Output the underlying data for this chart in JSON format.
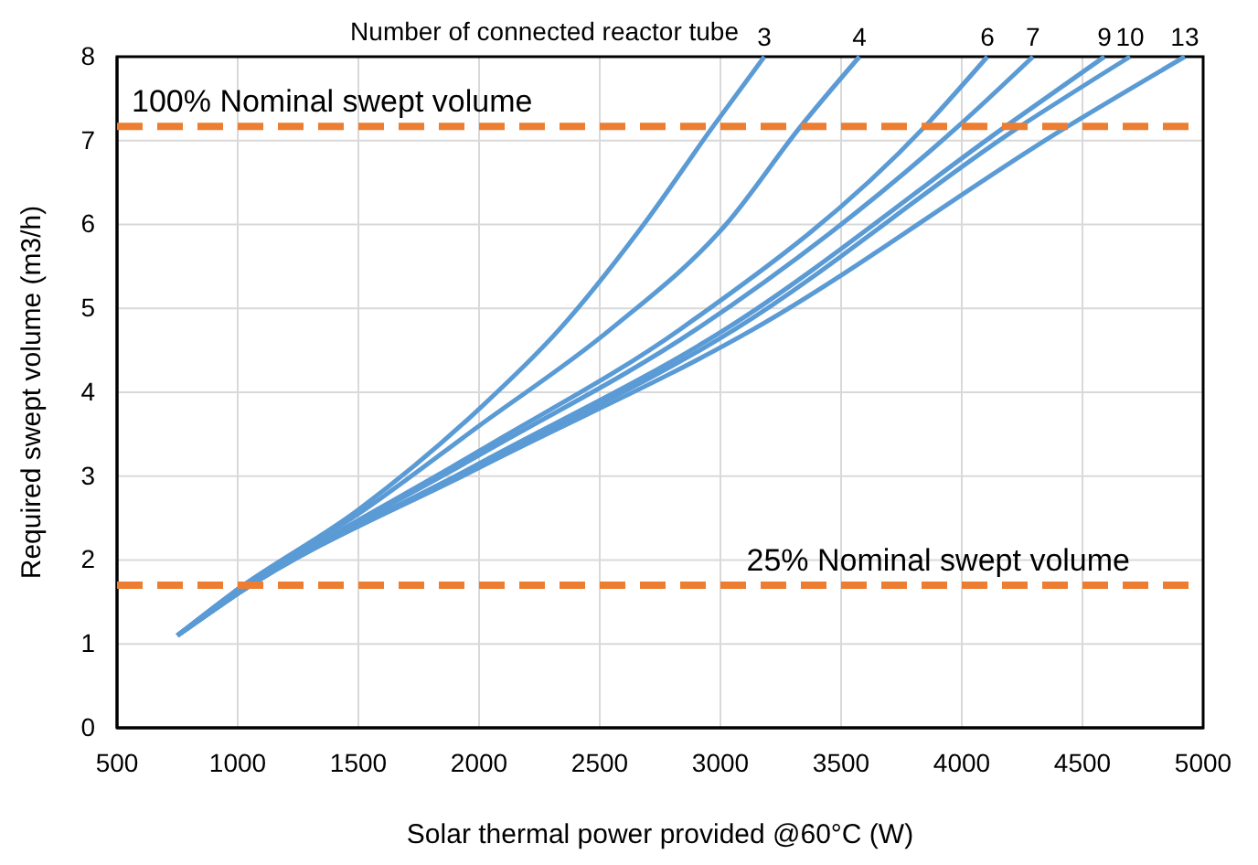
{
  "chart_data": {
    "type": "line",
    "xlabel": "Solar thermal power provided @60°C (W)",
    "ylabel": "Required swept volume (m3/h)",
    "xlim": [
      500,
      5000
    ],
    "xticks": [
      500,
      1000,
      1500,
      2000,
      2500,
      3000,
      3500,
      4000,
      4500,
      5000
    ],
    "ylim": [
      0,
      8
    ],
    "yticks": [
      0,
      1,
      2,
      3,
      4,
      5,
      6,
      7,
      8
    ],
    "grid": true,
    "legend": false,
    "marker": "none",
    "line_style": "solid",
    "series": [
      {
        "name": "3",
        "color": "#5b9bd5",
        "x": [
          750,
          1000,
          1500,
          2000,
          2333,
          2682,
          2970,
          3182
        ],
        "values": [
          1.1,
          1.65,
          2.6,
          3.8,
          4.75,
          6.0,
          7.17,
          8.0
        ]
      },
      {
        "name": "4",
        "color": "#5b9bd5",
        "x": [
          750,
          1000,
          1500,
          2000,
          2545,
          3023,
          3333,
          3576
        ],
        "values": [
          1.1,
          1.65,
          2.55,
          3.6,
          4.75,
          6.0,
          7.17,
          8.0
        ]
      },
      {
        "name": "6",
        "color": "#5b9bd5",
        "x": [
          750,
          1000,
          2000,
          2833,
          3848,
          4106
        ],
        "values": [
          1.1,
          1.6,
          3.3,
          4.75,
          7.17,
          8.0
        ]
      },
      {
        "name": "7",
        "color": "#5b9bd5",
        "x": [
          750,
          1000,
          2000,
          2900,
          3985,
          4295
        ],
        "values": [
          1.1,
          1.6,
          3.25,
          4.75,
          7.17,
          8.0
        ]
      },
      {
        "name": "9",
        "color": "#5b9bd5",
        "x": [
          750,
          1000,
          2000,
          3020,
          4182,
          4591
        ],
        "values": [
          1.1,
          1.6,
          3.15,
          4.75,
          7.17,
          8.0
        ]
      },
      {
        "name": "10",
        "color": "#5b9bd5",
        "x": [
          750,
          1000,
          2000,
          3060,
          4242,
          4697
        ],
        "values": [
          1.1,
          1.6,
          3.12,
          4.75,
          7.17,
          8.0
        ]
      },
      {
        "name": "13",
        "color": "#5b9bd5",
        "x": [
          750,
          1000,
          2000,
          3136,
          4439,
          4924
        ],
        "values": [
          1.1,
          1.6,
          3.1,
          4.75,
          7.17,
          8.0
        ]
      }
    ],
    "ref_lines": [
      {
        "axis": "y",
        "value": 7.17,
        "label": "100% Nominal swept volume",
        "color": "#ed7d31",
        "line_style": "dashed"
      },
      {
        "axis": "y",
        "value": 1.7,
        "label": "25% Nominal swept volume",
        "color": "#ed7d31",
        "line_style": "dashed"
      }
    ],
    "annotations": [
      "Number of connected reactor tube"
    ]
  }
}
